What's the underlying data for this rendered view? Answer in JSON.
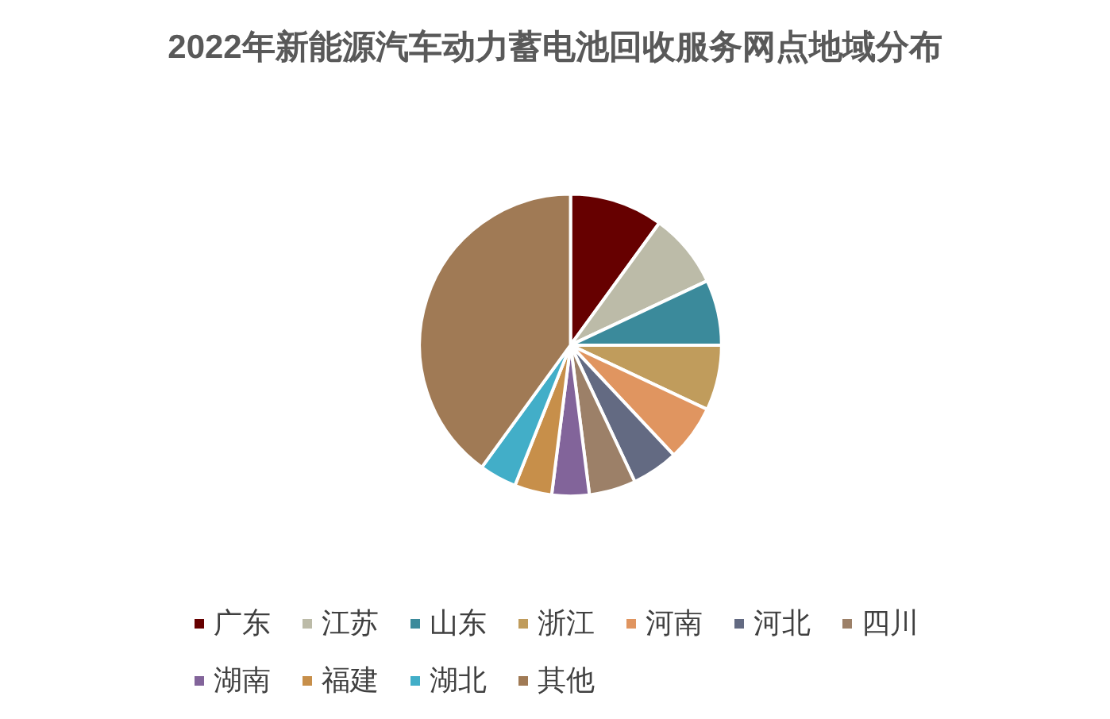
{
  "chart_data": {
    "type": "pie",
    "title": "2022年新能源汽车动力蓄电池回收服务网点地域分布",
    "categories": [
      "广东",
      "江苏",
      "山东",
      "浙江",
      "河南",
      "河北",
      "四川",
      "湖南",
      "福建",
      "湖北",
      "其他"
    ],
    "values": [
      10,
      8,
      7,
      7,
      6,
      5,
      5,
      4,
      4,
      4,
      40
    ],
    "colors": [
      "#660000",
      "#bcbba8",
      "#3b8a9b",
      "#c09c5c",
      "#e09560",
      "#636a82",
      "#9c8068",
      "#82649a",
      "#c78f4a",
      "#42aec8",
      "#a07a55"
    ],
    "legend": "bottom"
  }
}
